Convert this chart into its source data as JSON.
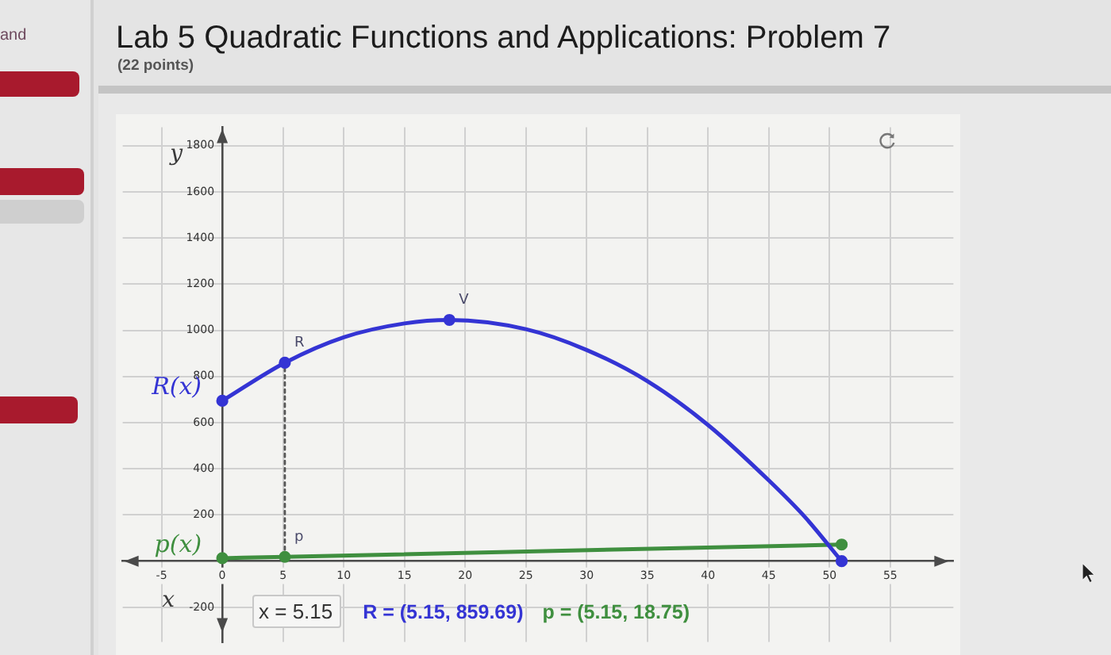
{
  "chart_data": {
    "type": "line",
    "title": "Lab 5 Quadratic Functions and Applications: Problem 7",
    "subtitle": "(22 points)",
    "xlabel": "x",
    "ylabel": "y",
    "series": [
      {
        "name": "R(x)",
        "type": "line",
        "color": "#3434d4",
        "x": [
          0,
          5.15,
          10,
          15,
          18.7,
          25,
          30,
          35,
          40,
          45,
          48,
          51
        ],
        "values": [
          695,
          859.69,
          970,
          1030,
          1045,
          1005,
          915,
          780,
          590,
          350,
          190,
          0
        ],
        "marker": "none"
      },
      {
        "name": "p(x)",
        "type": "line",
        "color": "#3f8f3f",
        "x": [
          0,
          5.15,
          51
        ],
        "values": [
          13,
          18.75,
          72
        ],
        "marker": "circle",
        "value_labels": [
          null,
          "p",
          null
        ]
      },
      {
        "type": "scatter",
        "color": "#3434d4",
        "x": [
          0,
          5.15,
          18.7,
          51
        ],
        "values": [
          695,
          859.69,
          1045,
          0
        ],
        "marker": "circle",
        "value_labels": [
          null,
          "R",
          "V",
          null
        ]
      },
      {
        "type": "line",
        "color": "#555555",
        "x": [
          5.15,
          5.15
        ],
        "values": [
          18.75,
          859.69
        ],
        "line_style": "dotted",
        "marker": "none"
      }
    ],
    "xlim": [
      -8.2,
      60.2
    ],
    "ylim": [
      -350,
      1880
    ],
    "xticks": [
      -5,
      0,
      5,
      10,
      15,
      20,
      25,
      30,
      35,
      40,
      45,
      50,
      55
    ],
    "yticks": [
      -200,
      200,
      400,
      600,
      800,
      1000,
      1200,
      1400,
      1600,
      1800
    ],
    "grid": true,
    "annotations": [
      "and",
      "x = 5.15",
      "R = (5.15, 859.69)",
      "p = (5.15, 18.75)"
    ]
  }
}
